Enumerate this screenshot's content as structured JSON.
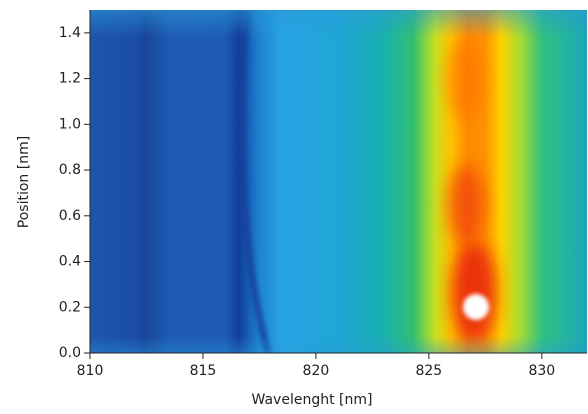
{
  "chart_data": {
    "type": "heatmap",
    "xlabel": "Wavelenght [nm]",
    "ylabel": "Position [nm]",
    "xlim": [
      810,
      832
    ],
    "ylim": [
      0,
      1.5
    ],
    "xticks": [
      810,
      815,
      820,
      825,
      830
    ],
    "yticks": [
      {
        "value": 0,
        "label": "0.0"
      },
      0.2,
      0.4,
      0.6,
      0.8,
      {
        "value": 1,
        "label": "1.0"
      },
      1.2,
      1.4
    ]
  }
}
